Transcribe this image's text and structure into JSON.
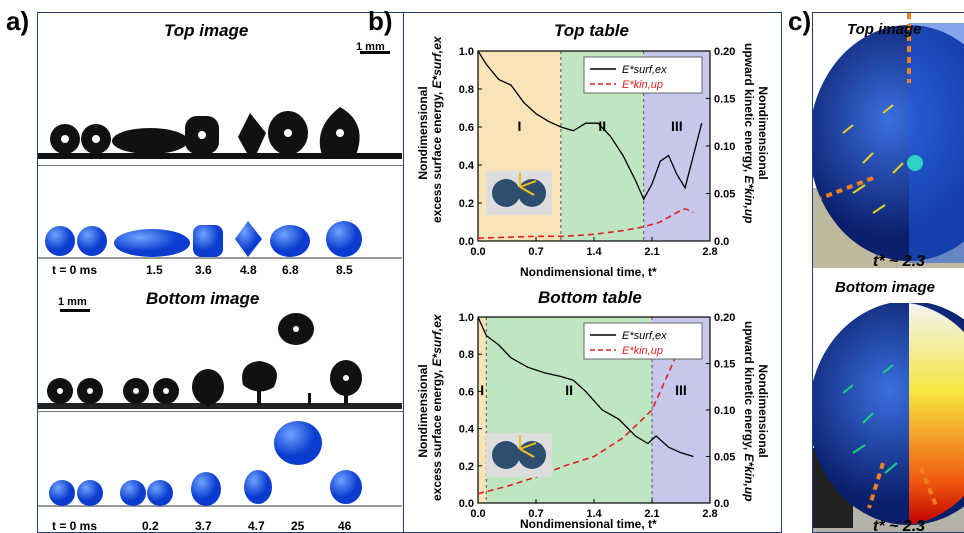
{
  "panel_a": {
    "label": "a)",
    "top_title": "Top image",
    "bottom_title": "Bottom image",
    "scale": "1 mm",
    "scale_bottom": "1 mm",
    "top_times": [
      "t = 0 ms",
      "1.5",
      "3.6",
      "4.8",
      "6.8",
      "8.5"
    ],
    "bottom_times": [
      "t = 0 ms",
      "0.2",
      "3.7",
      "4.7",
      "25",
      "46"
    ]
  },
  "panel_b": {
    "label": "b)",
    "charts": [
      {
        "id": "top",
        "title": "Top table",
        "ylabel_left": [
          "Nondimensional",
          "excess surface energy,"
        ],
        "ylabel_left_sym": "E*surf,ex",
        "ylabel_right": [
          "Nondimensional",
          "upward kinetic energy,"
        ],
        "ylabel_right_sym": "E*kin,up",
        "xlabel": "Nondimensional time, t*",
        "legend": [
          "E*surf,ex",
          "E*kin,up"
        ],
        "regions": [
          "I",
          "II",
          "III"
        ]
      },
      {
        "id": "bottom",
        "title": "Bottom table",
        "ylabel_left": [
          "Nondimensional",
          "excess surface energy,"
        ],
        "ylabel_left_sym": "E*surf,ex",
        "ylabel_right": [
          "Nondimensional",
          "upward kinetic energy,"
        ],
        "ylabel_right_sym": "E*kin,up",
        "xlabel": "Nondimensional time, t*",
        "legend": [
          "E*surf,ex",
          "E*kin,up"
        ],
        "regions": [
          "I",
          "II",
          "III"
        ]
      }
    ]
  },
  "panel_c": {
    "label": "c)",
    "top_title": "Top image",
    "bottom_title": "Bottom image",
    "top_time": "t* ~ 2.3",
    "bottom_time": "t* ~ 2.3"
  },
  "chart_data": [
    {
      "type": "line",
      "title": "Top table",
      "xlabel": "Nondimensional time, t*",
      "xlim": [
        0.0,
        2.8
      ],
      "xticks": [
        "0.0",
        "0.7",
        "1.4",
        "2.1",
        "2.8"
      ],
      "ylim": [
        0.0,
        1.0
      ],
      "yticks": [
        "0.0",
        "0.2",
        "0.4",
        "0.6",
        "0.8",
        "1.0"
      ],
      "y2lim": [
        0.0,
        0.2
      ],
      "y2ticks": [
        "0.0",
        "0.05",
        "0.10",
        "0.15",
        "0.20"
      ],
      "regions": [
        {
          "label": "I",
          "x": [
            0.0,
            1.0
          ],
          "color": "#f8e4b8"
        },
        {
          "label": "II",
          "x": [
            1.0,
            2.0
          ],
          "color": "#bfe5c3"
        },
        {
          "label": "III",
          "x": [
            2.0,
            2.8
          ],
          "color": "#c7c7ec"
        }
      ],
      "series": [
        {
          "name": "E*surf,ex",
          "axis": "left",
          "color": "#000000",
          "dash": false,
          "x": [
            0.0,
            0.1,
            0.25,
            0.4,
            0.55,
            0.7,
            0.85,
            1.0,
            1.15,
            1.3,
            1.45,
            1.6,
            1.75,
            1.9,
            2.0,
            2.1,
            2.2,
            2.3,
            2.4,
            2.5,
            2.6,
            2.7
          ],
          "y": [
            1.0,
            0.93,
            0.85,
            0.82,
            0.73,
            0.67,
            0.63,
            0.6,
            0.58,
            0.62,
            0.62,
            0.55,
            0.45,
            0.32,
            0.22,
            0.3,
            0.42,
            0.45,
            0.35,
            0.28,
            0.45,
            0.62
          ]
        },
        {
          "name": "E*kin,up",
          "axis": "right",
          "color": "#e02020",
          "dash": true,
          "x": [
            0.0,
            0.35,
            0.7,
            1.05,
            1.4,
            1.75,
            2.0,
            2.2,
            2.4,
            2.5,
            2.6
          ],
          "y": [
            0.003,
            0.004,
            0.005,
            0.005,
            0.007,
            0.011,
            0.015,
            0.02,
            0.03,
            0.034,
            0.03
          ]
        }
      ]
    },
    {
      "type": "line",
      "title": "Bottom table",
      "xlabel": "Nondimensional time, t*",
      "xlim": [
        0.0,
        2.8
      ],
      "xticks": [
        "0.0",
        "0.7",
        "1.4",
        "2.1",
        "2.8"
      ],
      "ylim": [
        0.0,
        1.0
      ],
      "yticks": [
        "0.0",
        "0.2",
        "0.4",
        "0.6",
        "0.8",
        "1.0"
      ],
      "y2lim": [
        0.0,
        0.2
      ],
      "y2ticks": [
        "0.0",
        "0.05",
        "0.10",
        "0.15",
        "0.20"
      ],
      "regions": [
        {
          "label": "I",
          "x": [
            0.0,
            0.1
          ],
          "color": "#f8e4b8"
        },
        {
          "label": "II",
          "x": [
            0.1,
            2.1
          ],
          "color": "#bfe5c3"
        },
        {
          "label": "III",
          "x": [
            2.1,
            2.8
          ],
          "color": "#c7c7ec"
        }
      ],
      "series": [
        {
          "name": "E*surf,ex",
          "axis": "left",
          "color": "#000000",
          "dash": false,
          "x": [
            0.0,
            0.1,
            0.25,
            0.4,
            0.6,
            0.8,
            1.0,
            1.15,
            1.3,
            1.5,
            1.7,
            1.9,
            2.05,
            2.15,
            2.3,
            2.45,
            2.6
          ],
          "y": [
            1.0,
            0.9,
            0.85,
            0.78,
            0.73,
            0.7,
            0.68,
            0.66,
            0.6,
            0.5,
            0.45,
            0.36,
            0.32,
            0.36,
            0.3,
            0.27,
            0.25
          ]
        },
        {
          "name": "E*kin,up",
          "axis": "right",
          "color": "#e02020",
          "dash": true,
          "x": [
            0.0,
            0.35,
            0.7,
            1.05,
            1.4,
            1.75,
            2.1,
            2.3,
            2.45,
            2.55,
            2.65
          ],
          "y": [
            0.01,
            0.018,
            0.028,
            0.04,
            0.05,
            0.07,
            0.1,
            0.14,
            0.17,
            0.185,
            0.19
          ]
        }
      ]
    }
  ]
}
